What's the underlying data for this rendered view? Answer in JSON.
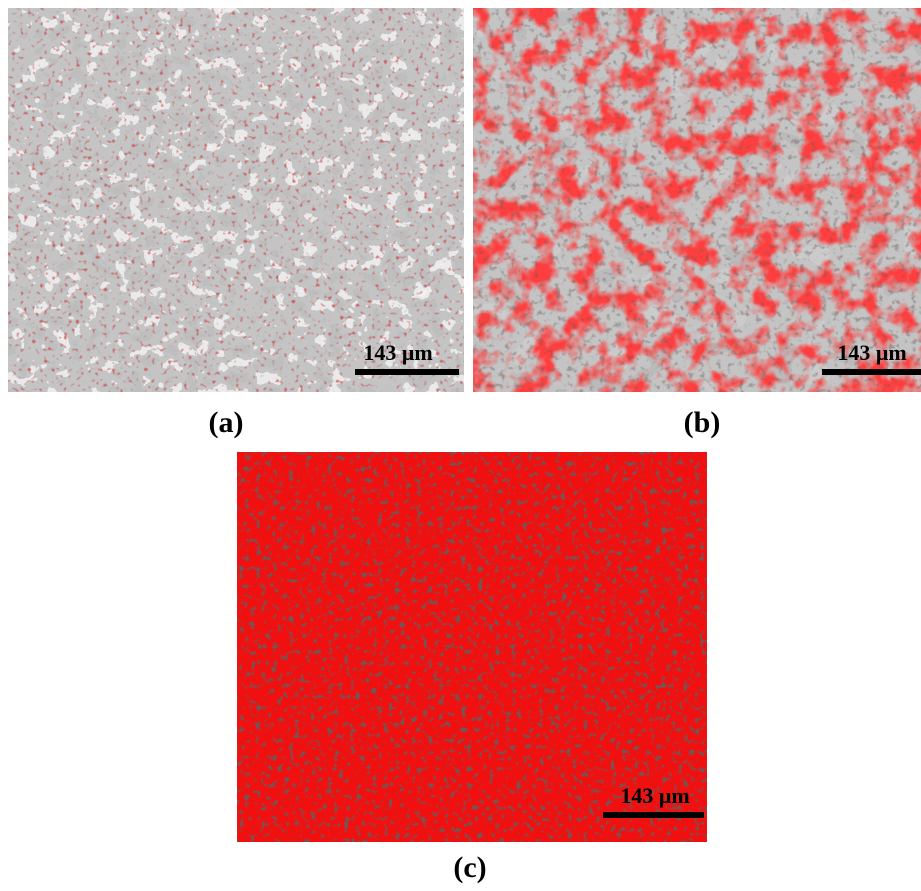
{
  "panels": [
    {
      "label": "(a)",
      "scale_label": "143 μm"
    },
    {
      "label": "(b)",
      "scale_label": "143 μm"
    },
    {
      "label": "(c)",
      "scale_label": "143 μm"
    }
  ]
}
